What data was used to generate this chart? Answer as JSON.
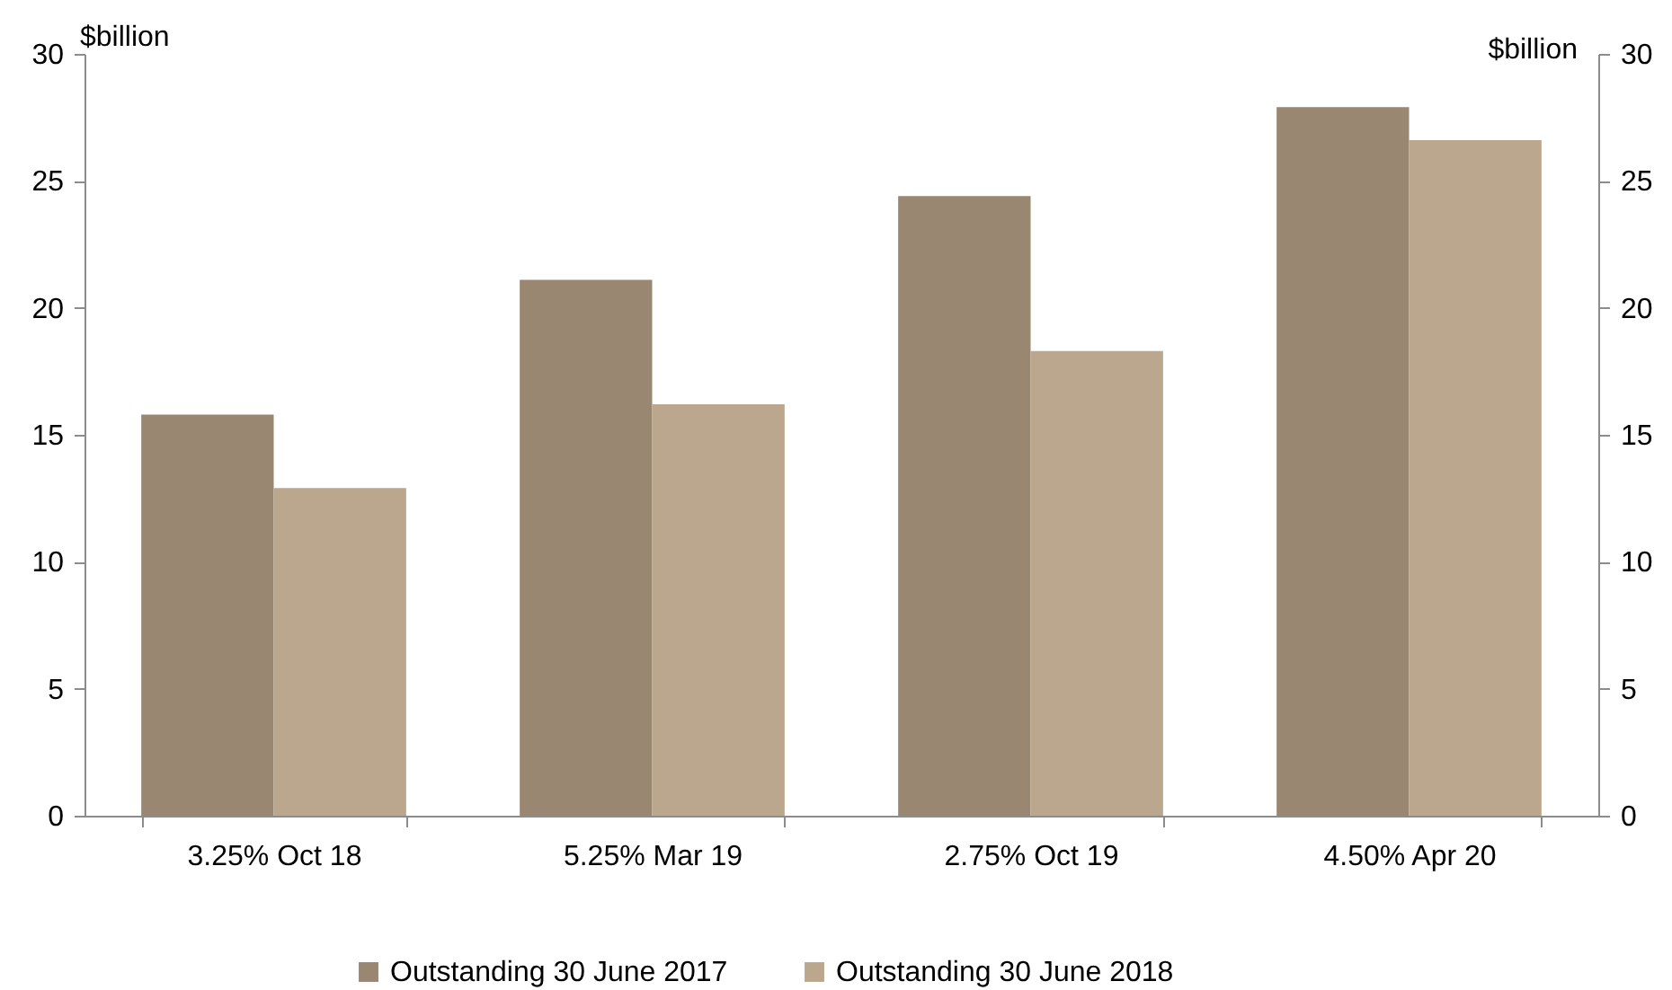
{
  "chart_data": {
    "type": "bar",
    "ylabel": "$billion",
    "y2label": "$billion",
    "categories": [
      "3.25% Oct 18",
      "5.25% Mar 19",
      "2.75% Oct 19",
      "4.50% Apr 20"
    ],
    "series": [
      {
        "name": "Outstanding 30 June 2017",
        "color": "#9a8772",
        "values": [
          15.8,
          21.1,
          24.4,
          27.9
        ]
      },
      {
        "name": "Outstanding 30 June 2018",
        "color": "#bba78d",
        "values": [
          12.9,
          16.2,
          18.3,
          26.6
        ]
      }
    ],
    "ylim": [
      0,
      30
    ],
    "yticks": [
      0,
      5,
      10,
      15,
      20,
      25,
      30
    ],
    "y2lim": [
      0,
      30
    ],
    "y2ticks": [
      0,
      5,
      10,
      15,
      20,
      25,
      30
    ],
    "grid": false,
    "legend": "bottom"
  }
}
